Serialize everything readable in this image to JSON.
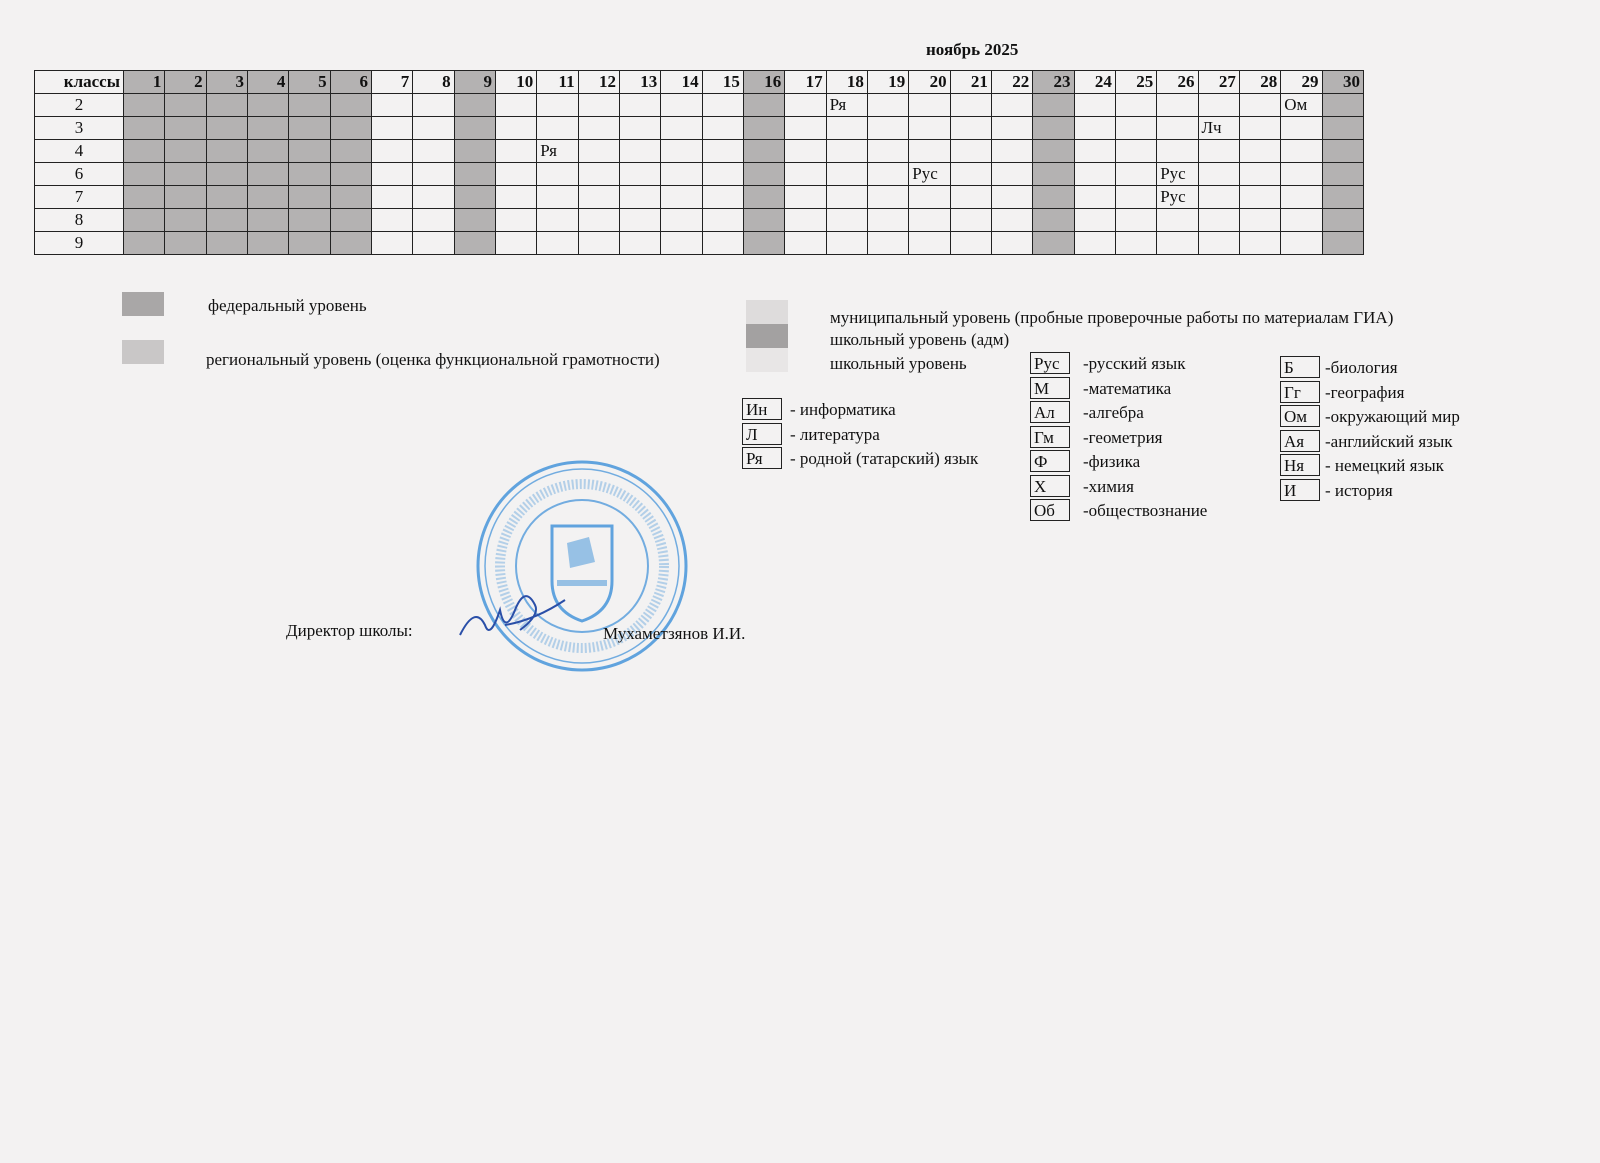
{
  "title": "ноябрь 2025",
  "table": {
    "header_label": "классы",
    "days": [
      1,
      2,
      3,
      4,
      5,
      6,
      7,
      8,
      9,
      10,
      11,
      12,
      13,
      14,
      15,
      16,
      17,
      18,
      19,
      20,
      21,
      22,
      23,
      24,
      25,
      26,
      27,
      28,
      29,
      30
    ],
    "shaded_days": [
      1,
      2,
      3,
      4,
      5,
      6,
      9,
      16,
      23,
      30
    ],
    "rows": [
      {
        "class": "2",
        "marks": {
          "18": "Ря",
          "29": "Ом"
        }
      },
      {
        "class": "3",
        "marks": {
          "27": "Лч"
        }
      },
      {
        "class": "4",
        "marks": {
          "11": "Ря"
        }
      },
      {
        "class": "6",
        "marks": {
          "20": "Рус",
          "26": "Рус"
        }
      },
      {
        "class": "7",
        "marks": {
          "26": "Рус"
        }
      },
      {
        "class": "8",
        "marks": {}
      },
      {
        "class": "9",
        "marks": {}
      }
    ]
  },
  "colors": {
    "shade": "#b4b2b2",
    "federal": "#a9a7a7",
    "regional": "#c9c7c7",
    "municipal": "#dedcdc",
    "school_adm": "#a3a1a1",
    "school": "#e8e6e6",
    "stamp": "#3b8fd8"
  },
  "levels": {
    "federal": "федеральный уровень",
    "regional": "региональный уровень (оценка функциональной грамотности)",
    "municipal": "муниципальный уровень (пробные проверочные работы по материалам ГИА)",
    "school_adm": "школьный уровень (адм)",
    "school": "школьный уровень"
  },
  "abbreviations": {
    "col1": [
      {
        "code": "Ин",
        "name": "- информатика"
      },
      {
        "code": "Л",
        "name": "- литература"
      },
      {
        "code": "Ря",
        "name": "-  родной (татарский) язык"
      }
    ],
    "col2": [
      {
        "code": "Рус",
        "name": "-русский язык"
      },
      {
        "code": "М",
        "name": "-математика"
      },
      {
        "code": "Ал",
        "name": "-алгебра"
      },
      {
        "code": "Гм",
        "name": "-геометрия"
      },
      {
        "code": "Ф",
        "name": "-физика"
      },
      {
        "code": "Х",
        "name": "-химия"
      },
      {
        "code": "Об",
        "name": "-обществознание"
      }
    ],
    "col3": [
      {
        "code": "Б",
        "name": "-биология"
      },
      {
        "code": "Гг",
        "name": "-география"
      },
      {
        "code": "Ом",
        "name": "-окружающий мир"
      },
      {
        "code": "Ая",
        "name": "-английский язык"
      },
      {
        "code": "Ня",
        "name": "- немецкий язык"
      },
      {
        "code": "И",
        "name": "- история"
      }
    ]
  },
  "signature": {
    "label": "Директор школы:",
    "name": "Мухаметзянов И.И."
  }
}
